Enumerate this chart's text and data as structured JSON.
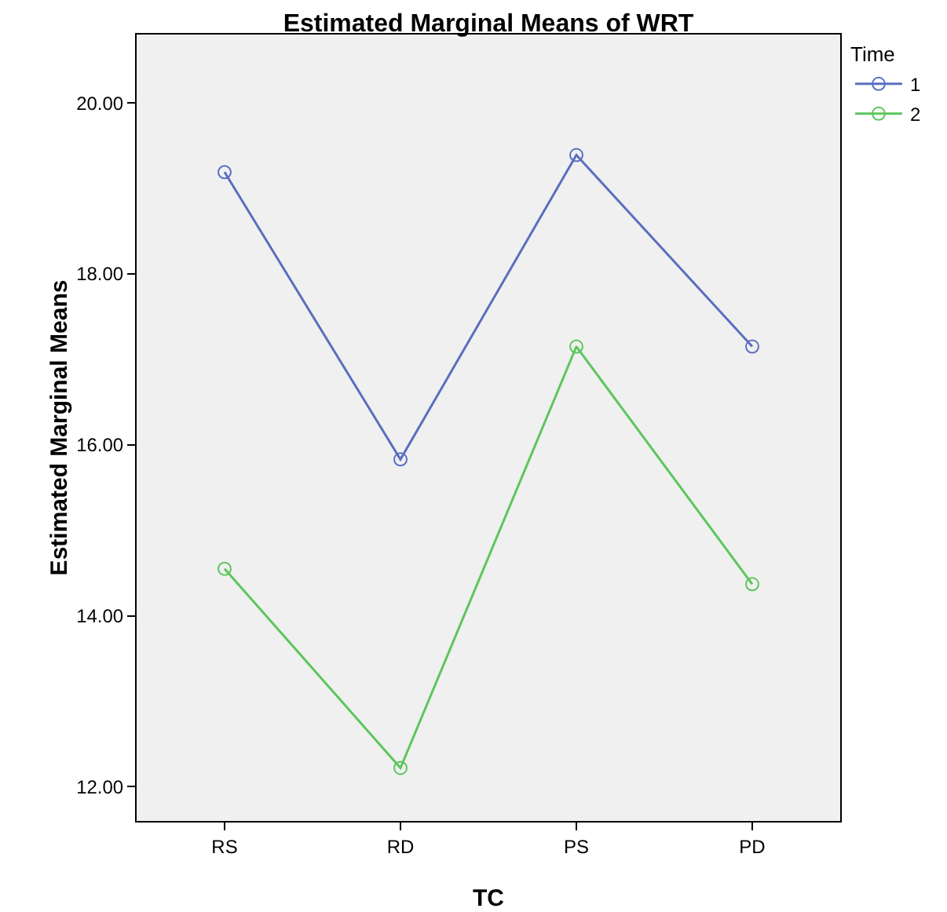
{
  "chart_data": {
    "type": "line",
    "title": "Estimated Marginal Means of WRT",
    "xlabel": "TC",
    "ylabel": "Estimated Marginal Means",
    "legend_title": "Time",
    "categories": [
      "RS",
      "RD",
      "PS",
      "PD"
    ],
    "series": [
      {
        "name": "1",
        "color": "#5b6ec0",
        "values": [
          19.19,
          15.83,
          19.39,
          17.15
        ]
      },
      {
        "name": "2",
        "color": "#5cc65c",
        "values": [
          14.55,
          12.22,
          17.15,
          14.37
        ]
      }
    ],
    "ylim": [
      11.6,
      20.8
    ],
    "yticks": [
      {
        "value": 12,
        "label": "12.00"
      },
      {
        "value": 14,
        "label": "14.00"
      },
      {
        "value": 16,
        "label": "16.00"
      },
      {
        "value": 18,
        "label": "18.00"
      },
      {
        "value": 20,
        "label": "20.00"
      }
    ],
    "grid": false,
    "legend": "top right",
    "marker": "circle",
    "line_style": "solid"
  }
}
